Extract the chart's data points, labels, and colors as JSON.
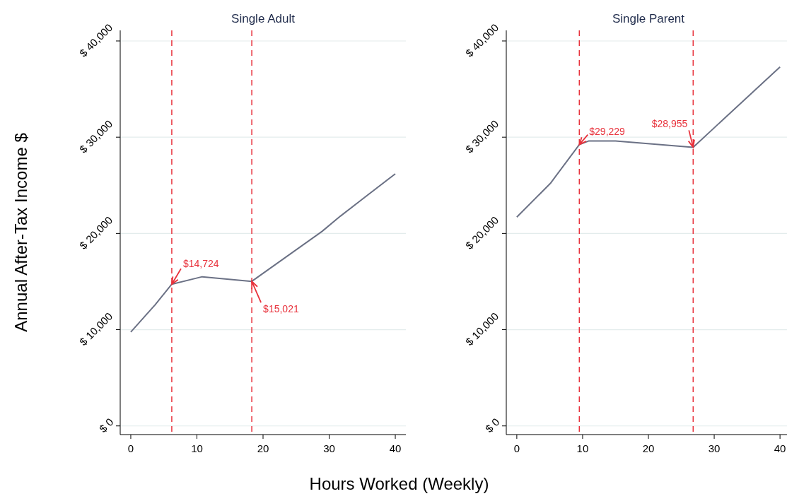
{
  "chart_data": [
    {
      "type": "line",
      "title": "Single Adult",
      "ylabel": "Annual After-Tax Income $",
      "xlabel": "Hours Worked (Weekly)",
      "series": [
        {
          "color": "#6b7185",
          "x": [
            0,
            3.7,
            6.2,
            10.8,
            18.3,
            28.9,
            31.7,
            40
          ],
          "values": [
            9760,
            12600,
            14724,
            15500,
            15021,
            20200,
            21800,
            26200
          ]
        }
      ],
      "xlim": [
        -1.6,
        41.6
      ],
      "xticks": [
        0,
        10,
        20,
        30,
        40
      ],
      "ylim": [
        -900,
        41100
      ],
      "yticks": [
        {
          "value": 0,
          "label": "$ 0"
        },
        {
          "value": 10000,
          "label": "$ 10,000"
        },
        {
          "value": 20000,
          "label": "$ 20,000"
        },
        {
          "value": 30000,
          "label": "$ 30,000"
        },
        {
          "value": 40000,
          "label": "$ 40,000"
        }
      ],
      "grid": "y",
      "ref_lines": [
        {
          "axis": "x",
          "value": 6.2,
          "color": "#e8323c",
          "line_style": "dashed"
        },
        {
          "axis": "x",
          "value": 18.3,
          "color": "#e8323c",
          "line_style": "dashed"
        }
      ],
      "annotations": [
        {
          "text": "$14,724",
          "x": 6.2,
          "y": 14724
        },
        {
          "text": "$15,021",
          "x": 18.3,
          "y": 15021
        }
      ]
    },
    {
      "type": "line",
      "title": "Single Parent",
      "series": [
        {
          "color": "#6b7185",
          "x": [
            0,
            5.1,
            9.5,
            10.9,
            15,
            26.8,
            40
          ],
          "values": [
            21700,
            25200,
            29229,
            29600,
            29600,
            28955,
            37300
          ]
        }
      ],
      "xlim": [
        -1.6,
        41.6
      ],
      "xticks": [
        0,
        10,
        20,
        30,
        40
      ],
      "ylim": [
        -900,
        41100
      ],
      "yticks": [
        {
          "value": 0,
          "label": "$ 0"
        },
        {
          "value": 10000,
          "label": "$ 10,000"
        },
        {
          "value": 20000,
          "label": "$ 20,000"
        },
        {
          "value": 30000,
          "label": "$ 30,000"
        },
        {
          "value": 40000,
          "label": "$ 40,000"
        }
      ],
      "grid": "y",
      "ref_lines": [
        {
          "axis": "x",
          "value": 9.5,
          "color": "#e8323c",
          "line_style": "dashed"
        },
        {
          "axis": "x",
          "value": 26.8,
          "color": "#e8323c",
          "line_style": "dashed"
        }
      ],
      "annotations": [
        {
          "text": "$29,229",
          "x": 9.5,
          "y": 29229
        },
        {
          "text": "$28,955",
          "x": 26.8,
          "y": 28955
        }
      ]
    }
  ]
}
